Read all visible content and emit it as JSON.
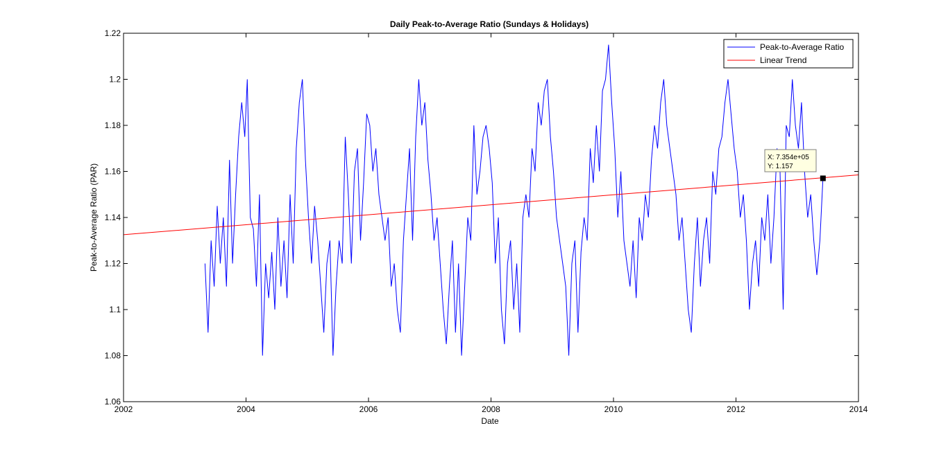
{
  "chart_data": {
    "type": "line",
    "title": "Daily Peak-to-Average Ratio (Sundays & Holidays)",
    "xlabel": "Date",
    "ylabel": "Peak-to-Average Ratio (PAR)",
    "xlim": [
      2002,
      2014
    ],
    "ylim": [
      1.06,
      1.22
    ],
    "x_ticks": [
      "2002",
      "2004",
      "2006",
      "2008",
      "2010",
      "2012",
      "2014"
    ],
    "y_ticks": [
      "1.06",
      "1.08",
      "1.1",
      "1.12",
      "1.14",
      "1.16",
      "1.18",
      "1.2",
      "1.22"
    ],
    "grid": false,
    "legend_position": "top-right",
    "series": [
      {
        "name": "Peak-to-Average Ratio",
        "color": "#0000ff",
        "points": [
          [
            2003.33,
            1.12
          ],
          [
            2003.38,
            1.09
          ],
          [
            2003.43,
            1.13
          ],
          [
            2003.48,
            1.11
          ],
          [
            2003.53,
            1.145
          ],
          [
            2003.58,
            1.12
          ],
          [
            2003.63,
            1.14
          ],
          [
            2003.68,
            1.11
          ],
          [
            2003.73,
            1.165
          ],
          [
            2003.78,
            1.12
          ],
          [
            2003.83,
            1.15
          ],
          [
            2003.88,
            1.175
          ],
          [
            2003.93,
            1.19
          ],
          [
            2003.98,
            1.175
          ],
          [
            2004.02,
            1.2
          ],
          [
            2004.07,
            1.14
          ],
          [
            2004.12,
            1.135
          ],
          [
            2004.17,
            1.11
          ],
          [
            2004.22,
            1.15
          ],
          [
            2004.27,
            1.08
          ],
          [
            2004.32,
            1.12
          ],
          [
            2004.37,
            1.105
          ],
          [
            2004.42,
            1.125
          ],
          [
            2004.47,
            1.1
          ],
          [
            2004.52,
            1.14
          ],
          [
            2004.57,
            1.11
          ],
          [
            2004.62,
            1.13
          ],
          [
            2004.67,
            1.105
          ],
          [
            2004.72,
            1.15
          ],
          [
            2004.77,
            1.12
          ],
          [
            2004.82,
            1.17
          ],
          [
            2004.87,
            1.19
          ],
          [
            2004.92,
            1.2
          ],
          [
            2004.97,
            1.165
          ],
          [
            2005.02,
            1.14
          ],
          [
            2005.07,
            1.12
          ],
          [
            2005.12,
            1.145
          ],
          [
            2005.17,
            1.13
          ],
          [
            2005.22,
            1.11
          ],
          [
            2005.27,
            1.09
          ],
          [
            2005.32,
            1.12
          ],
          [
            2005.37,
            1.13
          ],
          [
            2005.42,
            1.08
          ],
          [
            2005.47,
            1.11
          ],
          [
            2005.52,
            1.13
          ],
          [
            2005.57,
            1.12
          ],
          [
            2005.62,
            1.175
          ],
          [
            2005.67,
            1.15
          ],
          [
            2005.72,
            1.12
          ],
          [
            2005.77,
            1.16
          ],
          [
            2005.82,
            1.17
          ],
          [
            2005.87,
            1.13
          ],
          [
            2005.92,
            1.155
          ],
          [
            2005.97,
            1.185
          ],
          [
            2006.02,
            1.18
          ],
          [
            2006.07,
            1.16
          ],
          [
            2006.12,
            1.17
          ],
          [
            2006.17,
            1.15
          ],
          [
            2006.22,
            1.14
          ],
          [
            2006.27,
            1.13
          ],
          [
            2006.32,
            1.14
          ],
          [
            2006.37,
            1.11
          ],
          [
            2006.42,
            1.12
          ],
          [
            2006.47,
            1.1
          ],
          [
            2006.52,
            1.09
          ],
          [
            2006.57,
            1.13
          ],
          [
            2006.62,
            1.15
          ],
          [
            2006.67,
            1.17
          ],
          [
            2006.72,
            1.13
          ],
          [
            2006.77,
            1.175
          ],
          [
            2006.82,
            1.2
          ],
          [
            2006.87,
            1.18
          ],
          [
            2006.92,
            1.19
          ],
          [
            2006.97,
            1.165
          ],
          [
            2007.02,
            1.15
          ],
          [
            2007.07,
            1.13
          ],
          [
            2007.12,
            1.14
          ],
          [
            2007.17,
            1.12
          ],
          [
            2007.22,
            1.1
          ],
          [
            2007.27,
            1.085
          ],
          [
            2007.32,
            1.11
          ],
          [
            2007.37,
            1.13
          ],
          [
            2007.42,
            1.09
          ],
          [
            2007.47,
            1.12
          ],
          [
            2007.52,
            1.08
          ],
          [
            2007.57,
            1.11
          ],
          [
            2007.62,
            1.14
          ],
          [
            2007.67,
            1.13
          ],
          [
            2007.72,
            1.18
          ],
          [
            2007.77,
            1.15
          ],
          [
            2007.82,
            1.16
          ],
          [
            2007.87,
            1.175
          ],
          [
            2007.92,
            1.18
          ],
          [
            2007.97,
            1.17
          ],
          [
            2008.02,
            1.155
          ],
          [
            2008.07,
            1.12
          ],
          [
            2008.12,
            1.14
          ],
          [
            2008.17,
            1.1
          ],
          [
            2008.22,
            1.085
          ],
          [
            2008.27,
            1.12
          ],
          [
            2008.32,
            1.13
          ],
          [
            2008.37,
            1.1
          ],
          [
            2008.42,
            1.12
          ],
          [
            2008.47,
            1.09
          ],
          [
            2008.52,
            1.14
          ],
          [
            2008.57,
            1.15
          ],
          [
            2008.62,
            1.14
          ],
          [
            2008.67,
            1.17
          ],
          [
            2008.72,
            1.16
          ],
          [
            2008.77,
            1.19
          ],
          [
            2008.82,
            1.18
          ],
          [
            2008.87,
            1.195
          ],
          [
            2008.92,
            1.2
          ],
          [
            2008.97,
            1.175
          ],
          [
            2009.02,
            1.16
          ],
          [
            2009.07,
            1.14
          ],
          [
            2009.12,
            1.13
          ],
          [
            2009.17,
            1.12
          ],
          [
            2009.22,
            1.11
          ],
          [
            2009.27,
            1.08
          ],
          [
            2009.32,
            1.12
          ],
          [
            2009.37,
            1.13
          ],
          [
            2009.42,
            1.09
          ],
          [
            2009.47,
            1.125
          ],
          [
            2009.52,
            1.14
          ],
          [
            2009.57,
            1.13
          ],
          [
            2009.62,
            1.17
          ],
          [
            2009.67,
            1.155
          ],
          [
            2009.72,
            1.18
          ],
          [
            2009.77,
            1.16
          ],
          [
            2009.82,
            1.195
          ],
          [
            2009.87,
            1.2
          ],
          [
            2009.92,
            1.215
          ],
          [
            2009.97,
            1.19
          ],
          [
            2010.02,
            1.17
          ],
          [
            2010.07,
            1.14
          ],
          [
            2010.12,
            1.16
          ],
          [
            2010.17,
            1.13
          ],
          [
            2010.22,
            1.12
          ],
          [
            2010.27,
            1.11
          ],
          [
            2010.32,
            1.13
          ],
          [
            2010.37,
            1.105
          ],
          [
            2010.42,
            1.14
          ],
          [
            2010.47,
            1.13
          ],
          [
            2010.52,
            1.15
          ],
          [
            2010.57,
            1.14
          ],
          [
            2010.62,
            1.165
          ],
          [
            2010.67,
            1.18
          ],
          [
            2010.72,
            1.17
          ],
          [
            2010.77,
            1.19
          ],
          [
            2010.82,
            1.2
          ],
          [
            2010.87,
            1.18
          ],
          [
            2010.92,
            1.17
          ],
          [
            2010.97,
            1.16
          ],
          [
            2011.02,
            1.15
          ],
          [
            2011.07,
            1.13
          ],
          [
            2011.12,
            1.14
          ],
          [
            2011.17,
            1.12
          ],
          [
            2011.22,
            1.1
          ],
          [
            2011.27,
            1.09
          ],
          [
            2011.32,
            1.12
          ],
          [
            2011.37,
            1.14
          ],
          [
            2011.42,
            1.11
          ],
          [
            2011.47,
            1.13
          ],
          [
            2011.52,
            1.14
          ],
          [
            2011.57,
            1.12
          ],
          [
            2011.62,
            1.16
          ],
          [
            2011.67,
            1.15
          ],
          [
            2011.72,
            1.17
          ],
          [
            2011.77,
            1.175
          ],
          [
            2011.82,
            1.19
          ],
          [
            2011.87,
            1.2
          ],
          [
            2011.92,
            1.185
          ],
          [
            2011.97,
            1.17
          ],
          [
            2012.02,
            1.16
          ],
          [
            2012.07,
            1.14
          ],
          [
            2012.12,
            1.15
          ],
          [
            2012.17,
            1.13
          ],
          [
            2012.22,
            1.1
          ],
          [
            2012.27,
            1.12
          ],
          [
            2012.32,
            1.13
          ],
          [
            2012.37,
            1.11
          ],
          [
            2012.42,
            1.14
          ],
          [
            2012.47,
            1.13
          ],
          [
            2012.52,
            1.15
          ],
          [
            2012.57,
            1.12
          ],
          [
            2012.62,
            1.14
          ],
          [
            2012.67,
            1.17
          ],
          [
            2012.72,
            1.16
          ],
          [
            2012.77,
            1.1
          ],
          [
            2012.82,
            1.18
          ],
          [
            2012.87,
            1.175
          ],
          [
            2012.92,
            1.2
          ],
          [
            2012.97,
            1.18
          ],
          [
            2013.02,
            1.17
          ],
          [
            2013.07,
            1.19
          ],
          [
            2013.12,
            1.16
          ],
          [
            2013.17,
            1.14
          ],
          [
            2013.22,
            1.15
          ],
          [
            2013.27,
            1.13
          ],
          [
            2013.32,
            1.115
          ],
          [
            2013.37,
            1.13
          ],
          [
            2013.42,
            1.157
          ]
        ]
      },
      {
        "name": "Linear Trend",
        "color": "#ff0000",
        "points": [
          [
            2002,
            1.1325
          ],
          [
            2014,
            1.1585
          ]
        ]
      }
    ],
    "datatip": {
      "x_label": "X: 7.354e+05",
      "y_label": "Y: 1.157",
      "x": 2013.42,
      "y": 1.157
    }
  }
}
